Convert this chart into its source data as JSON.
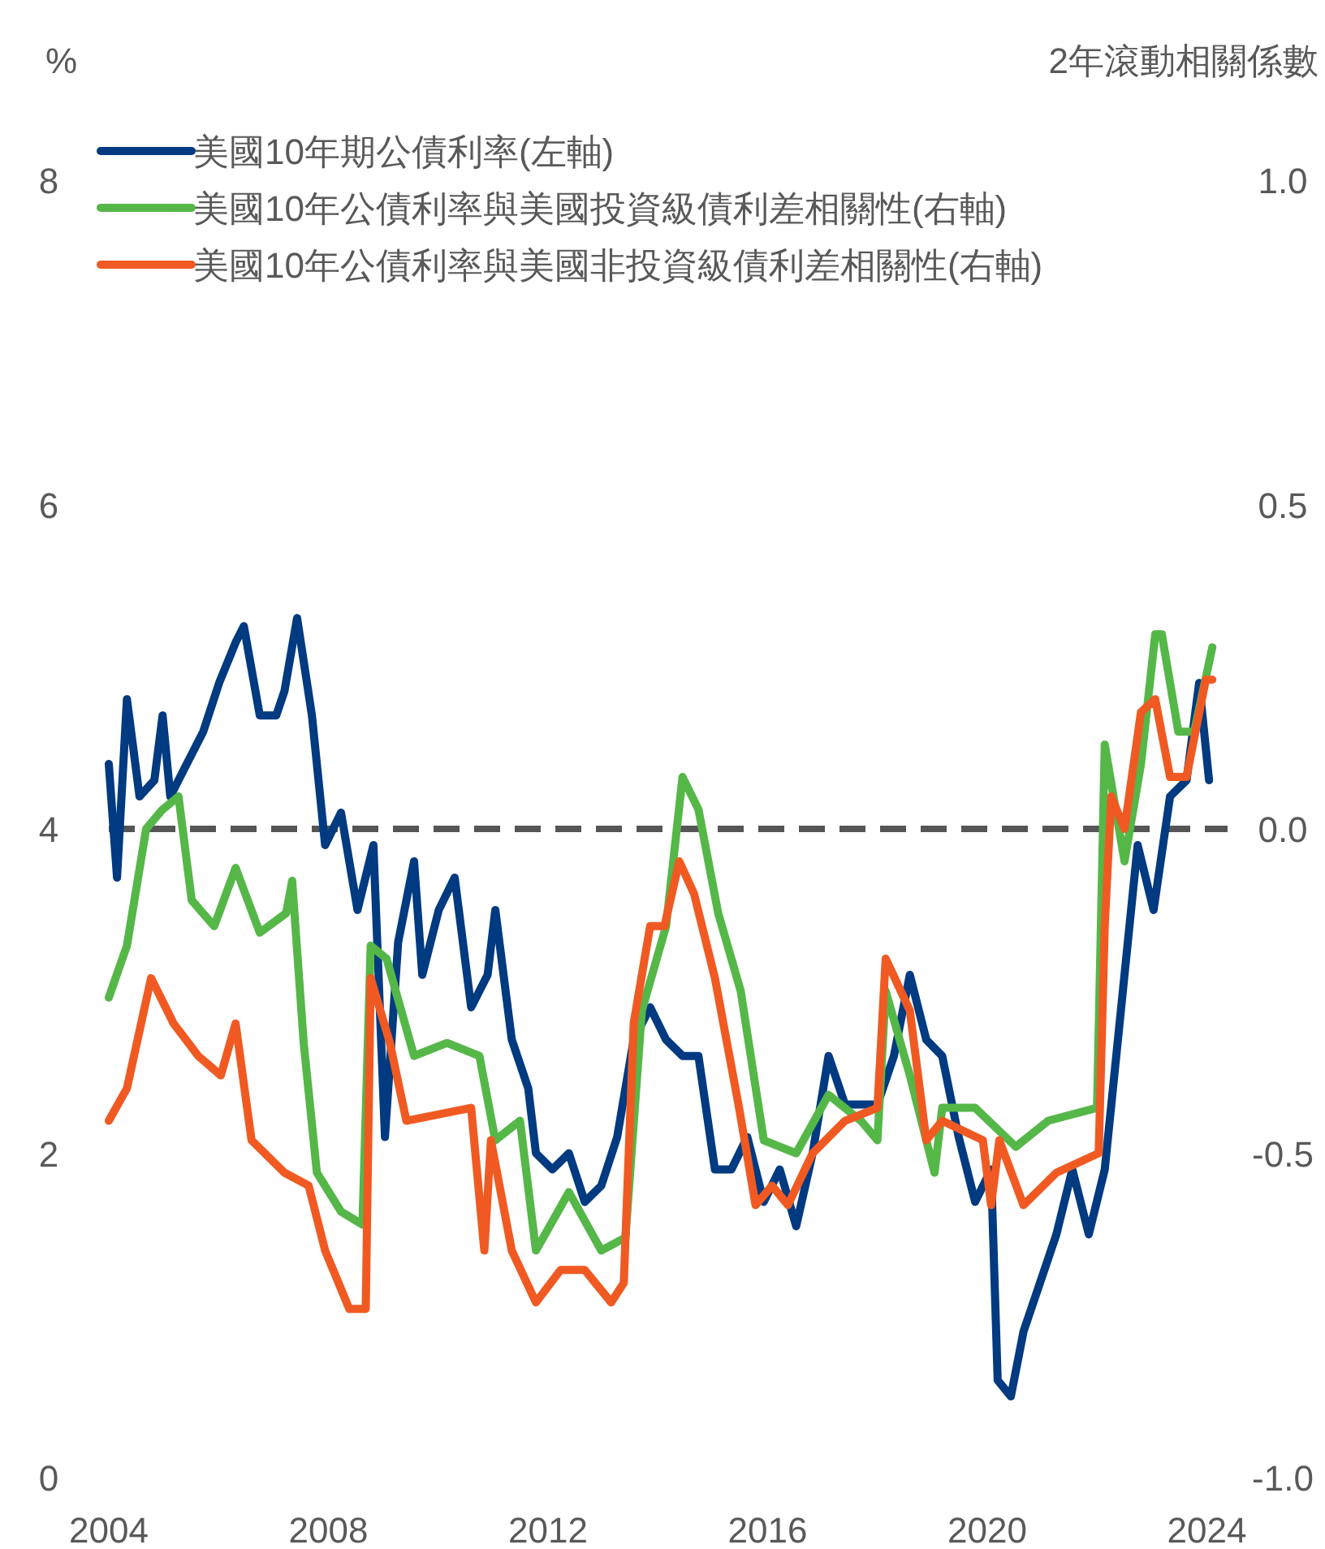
{
  "chart_data": {
    "type": "line",
    "ylabel": "%",
    "y2label": "2年滾動相關係數",
    "xlim": [
      2004,
      2024.2
    ],
    "xticks": [
      2004,
      2008,
      2012,
      2016,
      2020,
      2024
    ],
    "ylim": [
      0,
      8
    ],
    "yticks": [
      0,
      2,
      4,
      6,
      8
    ],
    "y2lim": [
      -1,
      1
    ],
    "y2ticks": [
      {
        "value": -1,
        "label": "-1.0"
      },
      {
        "value": -0.5,
        "label": "-0.5"
      },
      {
        "value": 0,
        "label": "0.0"
      },
      {
        "value": 0.5,
        "label": "0.5"
      },
      {
        "value": 1,
        "label": "1.0"
      }
    ],
    "grid": false,
    "legend": "top left",
    "ref_lines": [
      {
        "axis": "y2",
        "value": 0,
        "color": "#555555",
        "line_style": "dashed"
      }
    ],
    "series": [
      {
        "name": "美國10年期公債利率(左軸)",
        "color": "#003a80",
        "x": [
          2004.0,
          2004.15,
          2004.33,
          2004.56,
          2004.83,
          2004.98,
          2005.12,
          2005.42,
          2005.72,
          2006.01,
          2006.31,
          2006.46,
          2006.75,
          2007.05,
          2007.2,
          2007.43,
          2007.7,
          2007.94,
          2008.23,
          2008.53,
          2008.82,
          2009.03,
          2009.27,
          2009.56,
          2009.71,
          2010.01,
          2010.3,
          2010.6,
          2010.9,
          2011.04,
          2011.34,
          2011.64,
          2011.78,
          2012.08,
          2012.38,
          2012.67,
          2012.97,
          2013.26,
          2013.56,
          2013.86,
          2014.15,
          2014.45,
          2014.74,
          2015.04,
          2015.34,
          2015.63,
          2015.93,
          2016.22,
          2016.52,
          2016.82,
          2017.11,
          2017.41,
          2017.7,
          2018.0,
          2018.3,
          2018.59,
          2018.89,
          2019.18,
          2019.48,
          2019.78,
          2020.07,
          2020.19,
          2020.43,
          2020.66,
          2020.96,
          2021.26,
          2021.55,
          2021.85,
          2022.14,
          2022.44,
          2022.74,
          2023.03,
          2023.33,
          2023.63,
          2023.86,
          2024.04
        ],
        "values": [
          4.4,
          3.7,
          4.8,
          4.2,
          4.3,
          4.7,
          4.2,
          4.4,
          4.6,
          4.9,
          5.15,
          5.25,
          4.7,
          4.7,
          4.85,
          5.3,
          4.7,
          3.9,
          4.1,
          3.5,
          3.9,
          2.1,
          3.3,
          3.8,
          3.1,
          3.5,
          3.7,
          2.9,
          3.1,
          3.5,
          2.7,
          2.4,
          2.0,
          1.9,
          2.0,
          1.7,
          1.8,
          2.1,
          2.7,
          2.9,
          2.7,
          2.6,
          2.6,
          1.9,
          1.9,
          2.1,
          1.7,
          1.9,
          1.55,
          2.0,
          2.6,
          2.3,
          2.3,
          2.3,
          2.6,
          3.1,
          2.7,
          2.6,
          2.1,
          1.7,
          1.9,
          0.6,
          0.5,
          0.9,
          1.2,
          1.5,
          1.9,
          1.5,
          1.9,
          2.9,
          3.9,
          3.5,
          4.2,
          4.3,
          4.9,
          4.3
        ]
      },
      {
        "name": "美國10年公債利率與美國投資級債利差相關性(右軸)",
        "color": "#55b748",
        "axis": "y2",
        "x": [
          2004.0,
          2004.33,
          2004.68,
          2004.98,
          2005.27,
          2005.51,
          2005.92,
          2006.31,
          2006.75,
          2007.23,
          2007.34,
          2007.55,
          2007.79,
          2008.23,
          2008.62,
          2008.77,
          2009.06,
          2009.56,
          2010.16,
          2010.75,
          2011.04,
          2011.49,
          2011.78,
          2012.38,
          2012.97,
          2013.41,
          2013.71,
          2014.15,
          2014.45,
          2014.74,
          2015.1,
          2015.51,
          2015.93,
          2016.52,
          2017.11,
          2017.7,
          2018.0,
          2018.15,
          2018.59,
          2019.04,
          2019.18,
          2019.78,
          2020.52,
          2021.11,
          2022.0,
          2022.14,
          2022.5,
          2022.8,
          2023.06,
          2023.18,
          2023.48,
          2023.77,
          2024.1
        ],
        "values": [
          -0.26,
          -0.18,
          0.0,
          0.03,
          0.05,
          -0.11,
          -0.15,
          -0.06,
          -0.16,
          -0.13,
          -0.08,
          -0.33,
          -0.53,
          -0.59,
          -0.61,
          -0.18,
          -0.2,
          -0.35,
          -0.33,
          -0.35,
          -0.48,
          -0.45,
          -0.65,
          -0.56,
          -0.65,
          -0.63,
          -0.28,
          -0.15,
          0.08,
          0.03,
          -0.13,
          -0.25,
          -0.48,
          -0.5,
          -0.41,
          -0.45,
          -0.48,
          -0.25,
          -0.38,
          -0.53,
          -0.43,
          -0.43,
          -0.49,
          -0.45,
          -0.43,
          0.13,
          -0.05,
          0.1,
          0.3,
          0.3,
          0.15,
          0.15,
          0.28
        ]
      },
      {
        "name": "美國10年公債利率與美國非投資級債利差相關性(右軸)",
        "color": "#f05a22",
        "axis": "y2",
        "x": [
          2004.0,
          2004.33,
          2004.77,
          2005.18,
          2005.63,
          2006.04,
          2006.31,
          2006.6,
          2007.2,
          2007.64,
          2007.94,
          2008.38,
          2008.68,
          2008.77,
          2009.12,
          2009.42,
          2010.01,
          2010.6,
          2010.84,
          2010.96,
          2011.34,
          2011.78,
          2012.23,
          2012.67,
          2013.15,
          2013.38,
          2013.56,
          2013.86,
          2014.12,
          2014.39,
          2014.66,
          2015.04,
          2015.48,
          2015.78,
          2016.08,
          2016.37,
          2016.82,
          2017.41,
          2018.0,
          2018.15,
          2018.59,
          2018.89,
          2019.18,
          2019.92,
          2020.07,
          2020.22,
          2020.66,
          2021.26,
          2022.03,
          2022.14,
          2022.26,
          2022.5,
          2022.8,
          2023.06,
          2023.33,
          2023.63,
          2023.98,
          2024.1
        ],
        "values": [
          -0.45,
          -0.4,
          -0.23,
          -0.3,
          -0.35,
          -0.38,
          -0.3,
          -0.48,
          -0.53,
          -0.55,
          -0.65,
          -0.74,
          -0.74,
          -0.23,
          -0.33,
          -0.45,
          -0.44,
          -0.43,
          -0.65,
          -0.48,
          -0.65,
          -0.73,
          -0.68,
          -0.68,
          -0.73,
          -0.7,
          -0.3,
          -0.15,
          -0.15,
          -0.05,
          -0.1,
          -0.23,
          -0.43,
          -0.58,
          -0.55,
          -0.58,
          -0.5,
          -0.45,
          -0.43,
          -0.2,
          -0.28,
          -0.48,
          -0.45,
          -0.48,
          -0.58,
          -0.48,
          -0.58,
          -0.53,
          -0.5,
          -0.15,
          0.05,
          0.0,
          0.18,
          0.2,
          0.08,
          0.08,
          0.23,
          0.23
        ]
      }
    ]
  }
}
